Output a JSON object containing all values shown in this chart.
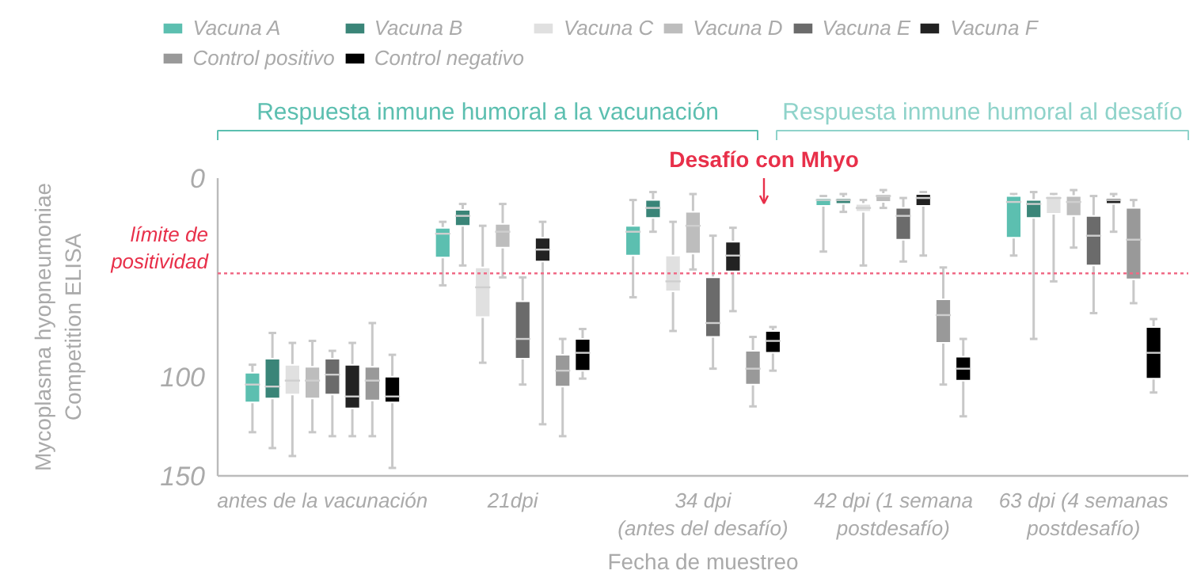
{
  "chart_data": {
    "type": "box",
    "xlabel": "Fecha de muestreo",
    "ylabel": "Mycoplasma hyopneumoniae\nCompetition ELISA",
    "categories": [
      "antes de la vacunación",
      "21dpi",
      "34 dpi\n(antes del desafío)",
      "42 dpi (1 semana\npostdesafío)",
      "63 dpi (4 semanas\npostdesafío)"
    ],
    "ylim": [
      150,
      0
    ],
    "yticks": [
      0,
      100,
      150
    ],
    "grid": false,
    "legend": "top",
    "annotations": [
      "Respuesta inmune humoral a la vacunación",
      "Respuesta inmune humoral al desafío",
      "Desafío con Mhyo"
    ],
    "ref_lines": [
      {
        "axis": "y",
        "value": 48,
        "label": "límite de\npositividad",
        "color": "#f06a86",
        "line_style": "dotted"
      }
    ],
    "series": [
      {
        "name": "Vacuna A",
        "color": "#5cbfb0",
        "boxes": [
          {
            "low": 94,
            "q1": 98,
            "median": 104,
            "q3": 113,
            "high": 128
          },
          {
            "low": 22,
            "q1": 25,
            "median": 28,
            "q3": 40,
            "high": 54
          },
          {
            "low": 11,
            "q1": 24,
            "median": 27,
            "q3": 39,
            "high": 60
          },
          {
            "low": 9,
            "q1": 10,
            "median": 11,
            "q3": 14,
            "high": 37
          },
          {
            "low": 8,
            "q1": 9,
            "median": 12,
            "q3": 30,
            "high": 39
          }
        ]
      },
      {
        "name": "Vacuna B",
        "color": "#3a8578",
        "boxes": [
          {
            "low": 78,
            "q1": 91,
            "median": 105,
            "q3": 111,
            "high": 136
          },
          {
            "low": 13,
            "q1": 16,
            "median": 19,
            "q3": 24,
            "high": 44
          },
          {
            "low": 7,
            "q1": 11,
            "median": 15,
            "q3": 20,
            "high": 27
          },
          {
            "low": 8,
            "q1": 10,
            "median": 11,
            "q3": 13,
            "high": 17
          },
          {
            "low": 7,
            "q1": 11,
            "median": 13,
            "q3": 20,
            "high": 81
          }
        ]
      },
      {
        "name": "Vacuna C",
        "color": "#e0e0e0",
        "boxes": [
          {
            "low": 83,
            "q1": 94,
            "median": 102,
            "q3": 109,
            "high": 140
          },
          {
            "low": 24,
            "q1": 45,
            "median": 55,
            "q3": 70,
            "high": 93
          },
          {
            "low": 22,
            "q1": 39,
            "median": 52,
            "q3": 57,
            "high": 77
          },
          {
            "low": 11,
            "q1": 13,
            "median": 15,
            "q3": 17,
            "high": 44
          },
          {
            "low": 8,
            "q1": 9,
            "median": 10,
            "q3": 18,
            "high": 52
          }
        ]
      },
      {
        "name": "Vacuna D",
        "color": "#bdbdbd",
        "boxes": [
          {
            "low": 82,
            "q1": 95,
            "median": 102,
            "q3": 111,
            "high": 128
          },
          {
            "low": 13,
            "q1": 23,
            "median": 27,
            "q3": 35,
            "high": 50
          },
          {
            "low": 8,
            "q1": 17,
            "median": 24,
            "q3": 38,
            "high": 46
          },
          {
            "low": 6,
            "q1": 8,
            "median": 9,
            "q3": 12,
            "high": 15
          },
          {
            "low": 6,
            "q1": 9,
            "median": 12,
            "q3": 19,
            "high": 35
          }
        ]
      },
      {
        "name": "Vacuna E",
        "color": "#6b6b6b",
        "boxes": [
          {
            "low": 87,
            "q1": 91,
            "median": 99,
            "q3": 109,
            "high": 130
          },
          {
            "low": 50,
            "q1": 62,
            "median": 81,
            "q3": 91,
            "high": 104
          },
          {
            "low": 29,
            "q1": 50,
            "median": 73,
            "q3": 80,
            "high": 96
          },
          {
            "low": 10,
            "q1": 15,
            "median": 19,
            "q3": 31,
            "high": 42
          },
          {
            "low": 9,
            "q1": 19,
            "median": 29,
            "q3": 44,
            "high": 68
          }
        ]
      },
      {
        "name": "Vacuna F",
        "color": "#222222",
        "boxes": [
          {
            "low": 83,
            "q1": 94,
            "median": 110,
            "q3": 116,
            "high": 130
          },
          {
            "low": 22,
            "q1": 30,
            "median": 36,
            "q3": 42,
            "high": 124
          },
          {
            "low": 25,
            "q1": 32,
            "median": 39,
            "q3": 47,
            "high": 67
          },
          {
            "low": 7,
            "q1": 8,
            "median": 10,
            "q3": 14,
            "high": 39
          },
          {
            "low": 8,
            "q1": 10,
            "median": 11,
            "q3": 13,
            "high": 27
          }
        ]
      },
      {
        "name": "Control positivo",
        "color": "#999999",
        "boxes": [
          {
            "low": 73,
            "q1": 95,
            "median": 102,
            "q3": 112,
            "high": 130
          },
          {
            "low": 81,
            "q1": 89,
            "median": 97,
            "q3": 105,
            "high": 130
          },
          {
            "low": 80,
            "q1": 87,
            "median": 96,
            "q3": 104,
            "high": 115
          },
          {
            "low": 45,
            "q1": 61,
            "median": 69,
            "q3": 83,
            "high": 104
          },
          {
            "low": 11,
            "q1": 15,
            "median": 31,
            "q3": 51,
            "high": 63
          }
        ]
      },
      {
        "name": "Control negativo",
        "color": "#000000",
        "boxes": [
          {
            "low": 89,
            "q1": 100,
            "median": 110,
            "q3": 113,
            "high": 146
          },
          {
            "low": 76,
            "q1": 81,
            "median": 88,
            "q3": 97,
            "high": 101
          },
          {
            "low": 75,
            "q1": 77,
            "median": 82,
            "q3": 88,
            "high": 97
          },
          {
            "low": 81,
            "q1": 90,
            "median": 96,
            "q3": 102,
            "high": 120
          },
          {
            "low": 71,
            "q1": 75,
            "median": 88,
            "q3": 101,
            "high": 108
          }
        ]
      }
    ]
  }
}
